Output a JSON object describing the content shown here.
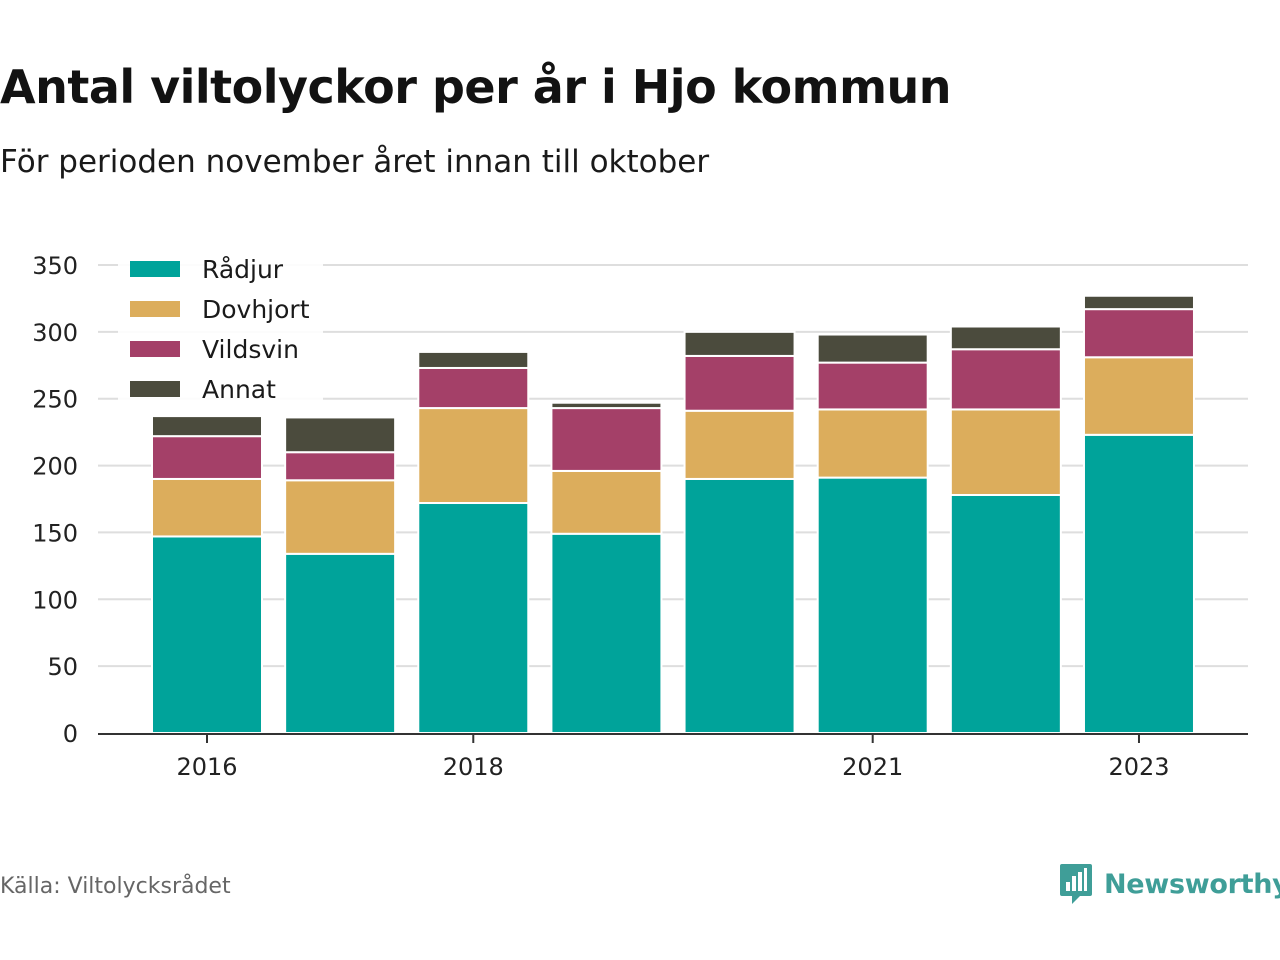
{
  "title": "Antal viltolyckor per år i Hjo kommun",
  "subtitle": "För perioden november året innan till oktober",
  "source": "Källa: Viltolycksrådet",
  "brand": "Newsworthy",
  "colors": {
    "Rådjur": "#00a39a",
    "Dovhjort": "#dcad5c",
    "Vildsvin": "#a44068",
    "Annat": "#4b4b3d",
    "grid": "#dedede",
    "axis": "#333333",
    "brand": "#3f9e98"
  },
  "chart_data": {
    "type": "bar",
    "stacked": true,
    "categories": [
      "2016",
      "2017",
      "2018",
      "2019",
      "2020",
      "2021",
      "2022",
      "2023"
    ],
    "xtick_labels": [
      "2016",
      "",
      "2018",
      "",
      "",
      "2021",
      "",
      "2023"
    ],
    "series": [
      {
        "name": "Rådjur",
        "values": [
          147,
          134,
          172,
          149,
          190,
          191,
          178,
          223
        ]
      },
      {
        "name": "Dovhjort",
        "values": [
          43,
          55,
          71,
          47,
          51,
          51,
          64,
          58
        ]
      },
      {
        "name": "Vildsvin",
        "values": [
          32,
          21,
          30,
          47,
          41,
          35,
          45,
          36
        ]
      },
      {
        "name": "Annat",
        "values": [
          15,
          26,
          12,
          4,
          18,
          21,
          17,
          10
        ]
      }
    ],
    "ylim": [
      0,
      350
    ],
    "yticks": [
      0,
      50,
      100,
      150,
      200,
      250,
      300,
      350
    ],
    "grid": true,
    "legend_position": "top-left"
  }
}
